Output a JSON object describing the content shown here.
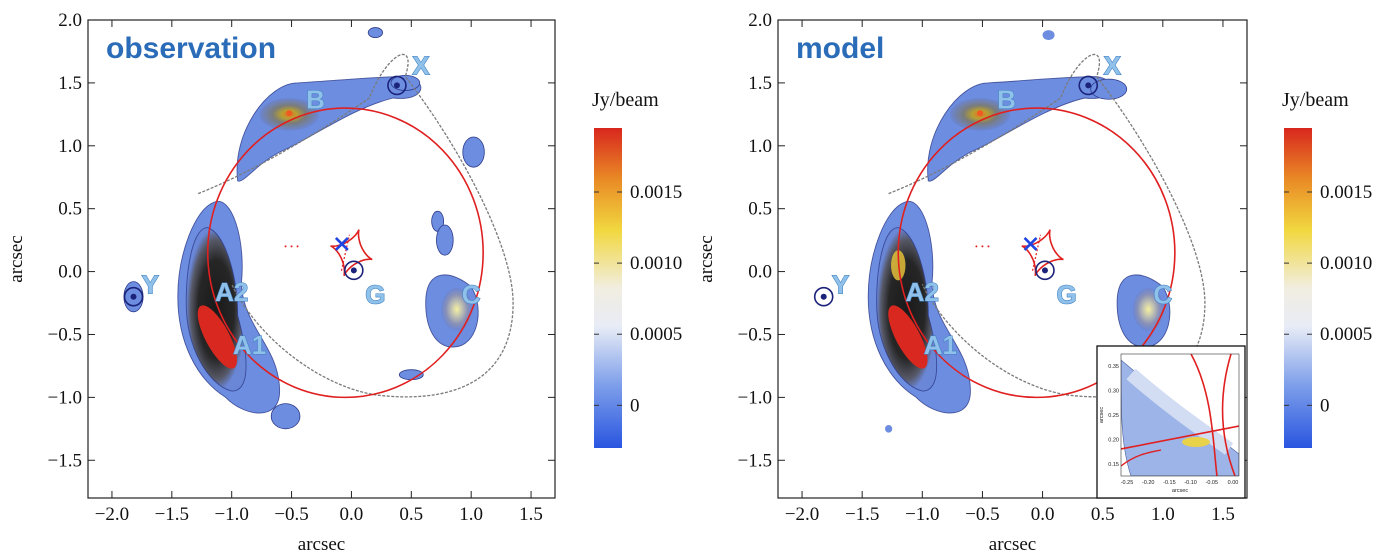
{
  "chart_data": [
    {
      "type": "contour",
      "title": "observation",
      "xlabel": "arcsec",
      "ylabel": "arcsec",
      "xlim": [
        -2.2,
        1.7
      ],
      "ylim": [
        -1.8,
        2.0
      ],
      "xticks": [
        -2.0,
        -1.5,
        -1.0,
        -0.5,
        0.0,
        0.5,
        1.0,
        1.5
      ],
      "xtick_labels": [
        "−2.0",
        "−1.5",
        "−1.0",
        "−0.5",
        "0.0",
        "0.5",
        "1.0",
        "1.5"
      ],
      "yticks": [
        2.0,
        1.5,
        1.0,
        0.5,
        0.0,
        -0.5,
        -1.0,
        -1.5
      ],
      "ytick_labels": [
        "2.0",
        "1.5",
        "1.0",
        "0.5",
        "0.0",
        "−0.5",
        "−1.0",
        "−1.5"
      ],
      "image_labels": [
        {
          "text": "A2",
          "x": -1.0,
          "y": -0.18
        },
        {
          "text": "A1",
          "x": -0.85,
          "y": -0.6
        },
        {
          "text": "B",
          "x": -0.3,
          "y": 1.35
        },
        {
          "text": "C",
          "x": 1.0,
          "y": -0.2
        },
        {
          "text": "G",
          "x": 0.2,
          "y": -0.2
        },
        {
          "text": "X",
          "x": 0.58,
          "y": 1.62
        },
        {
          "text": "Y",
          "x": -1.68,
          "y": -0.12
        }
      ],
      "markers": [
        {
          "label": "X",
          "x": 0.38,
          "y": 1.48
        },
        {
          "label": "Y",
          "x": -1.82,
          "y": -0.2
        },
        {
          "label": "G",
          "x": 0.02,
          "y": 0.01
        }
      ],
      "source_cross": {
        "x": -0.08,
        "y": 0.22
      },
      "critical_curve": {
        "center": [
          -0.05,
          0.15
        ],
        "radius": 1.15,
        "color": "#e02020"
      },
      "caustic_color": "#e02020",
      "colorbar": {
        "title": "Jy/beam",
        "range": [
          -0.0003,
          0.00195
        ],
        "ticks": [
          0,
          0.0005,
          0.001,
          0.0015
        ],
        "tick_labels": [
          "0",
          "0.0005",
          "0.0010",
          "0.0015"
        ]
      }
    },
    {
      "type": "contour",
      "title": "model",
      "xlabel": "arcsec",
      "ylabel": "arcsec",
      "xlim": [
        -2.2,
        1.7
      ],
      "ylim": [
        -1.8,
        2.0
      ],
      "xticks": [
        -2.0,
        -1.5,
        -1.0,
        -0.5,
        0.0,
        0.5,
        1.0,
        1.5
      ],
      "xtick_labels": [
        "−2.0",
        "−1.5",
        "−1.0",
        "−0.5",
        "0.0",
        "0.5",
        "1.0",
        "1.5"
      ],
      "yticks": [
        2.0,
        1.5,
        1.0,
        0.5,
        0.0,
        -0.5,
        -1.0,
        -1.5
      ],
      "ytick_labels": [
        "2.0",
        "1.5",
        "1.0",
        "0.5",
        "0.0",
        "−0.5",
        "−1.0",
        "−1.5"
      ],
      "image_labels": [
        {
          "text": "A2",
          "x": -1.0,
          "y": -0.18
        },
        {
          "text": "A1",
          "x": -0.85,
          "y": -0.6
        },
        {
          "text": "B",
          "x": -0.3,
          "y": 1.35
        },
        {
          "text": "C",
          "x": 1.0,
          "y": -0.2
        },
        {
          "text": "G",
          "x": 0.2,
          "y": -0.2
        },
        {
          "text": "X",
          "x": 0.58,
          "y": 1.62
        },
        {
          "text": "Y",
          "x": -1.68,
          "y": -0.12
        }
      ],
      "markers": [
        {
          "label": "X",
          "x": 0.38,
          "y": 1.48
        },
        {
          "label": "Y",
          "x": -1.82,
          "y": -0.2
        },
        {
          "label": "G",
          "x": 0.02,
          "y": 0.01
        }
      ],
      "source_cross": {
        "x": -0.1,
        "y": 0.22
      },
      "critical_curve": {
        "center": [
          -0.05,
          0.15
        ],
        "radius": 1.15,
        "color": "#e02020"
      },
      "caustic_color": "#e02020",
      "colorbar": {
        "title": "Jy/beam",
        "range": [
          -0.0003,
          0.00195
        ],
        "ticks": [
          0,
          0.0005,
          0.001,
          0.0015
        ],
        "tick_labels": [
          "0",
          "0.0005",
          "0.0010",
          "0.0015"
        ]
      },
      "inset": {
        "xlim": [
          -0.27,
          0.01
        ],
        "ylim": [
          0.12,
          0.38
        ],
        "xtick_labels": [
          "-0.25",
          "-0.20",
          "-0.15",
          "-0.10",
          "-0.05",
          "0.00"
        ],
        "ytick_labels": [
          "0.35",
          "0.30",
          "0.25",
          "0.20",
          "0.15"
        ],
        "xlabel": "arcsec",
        "ylabel": "arcsec"
      }
    }
  ]
}
